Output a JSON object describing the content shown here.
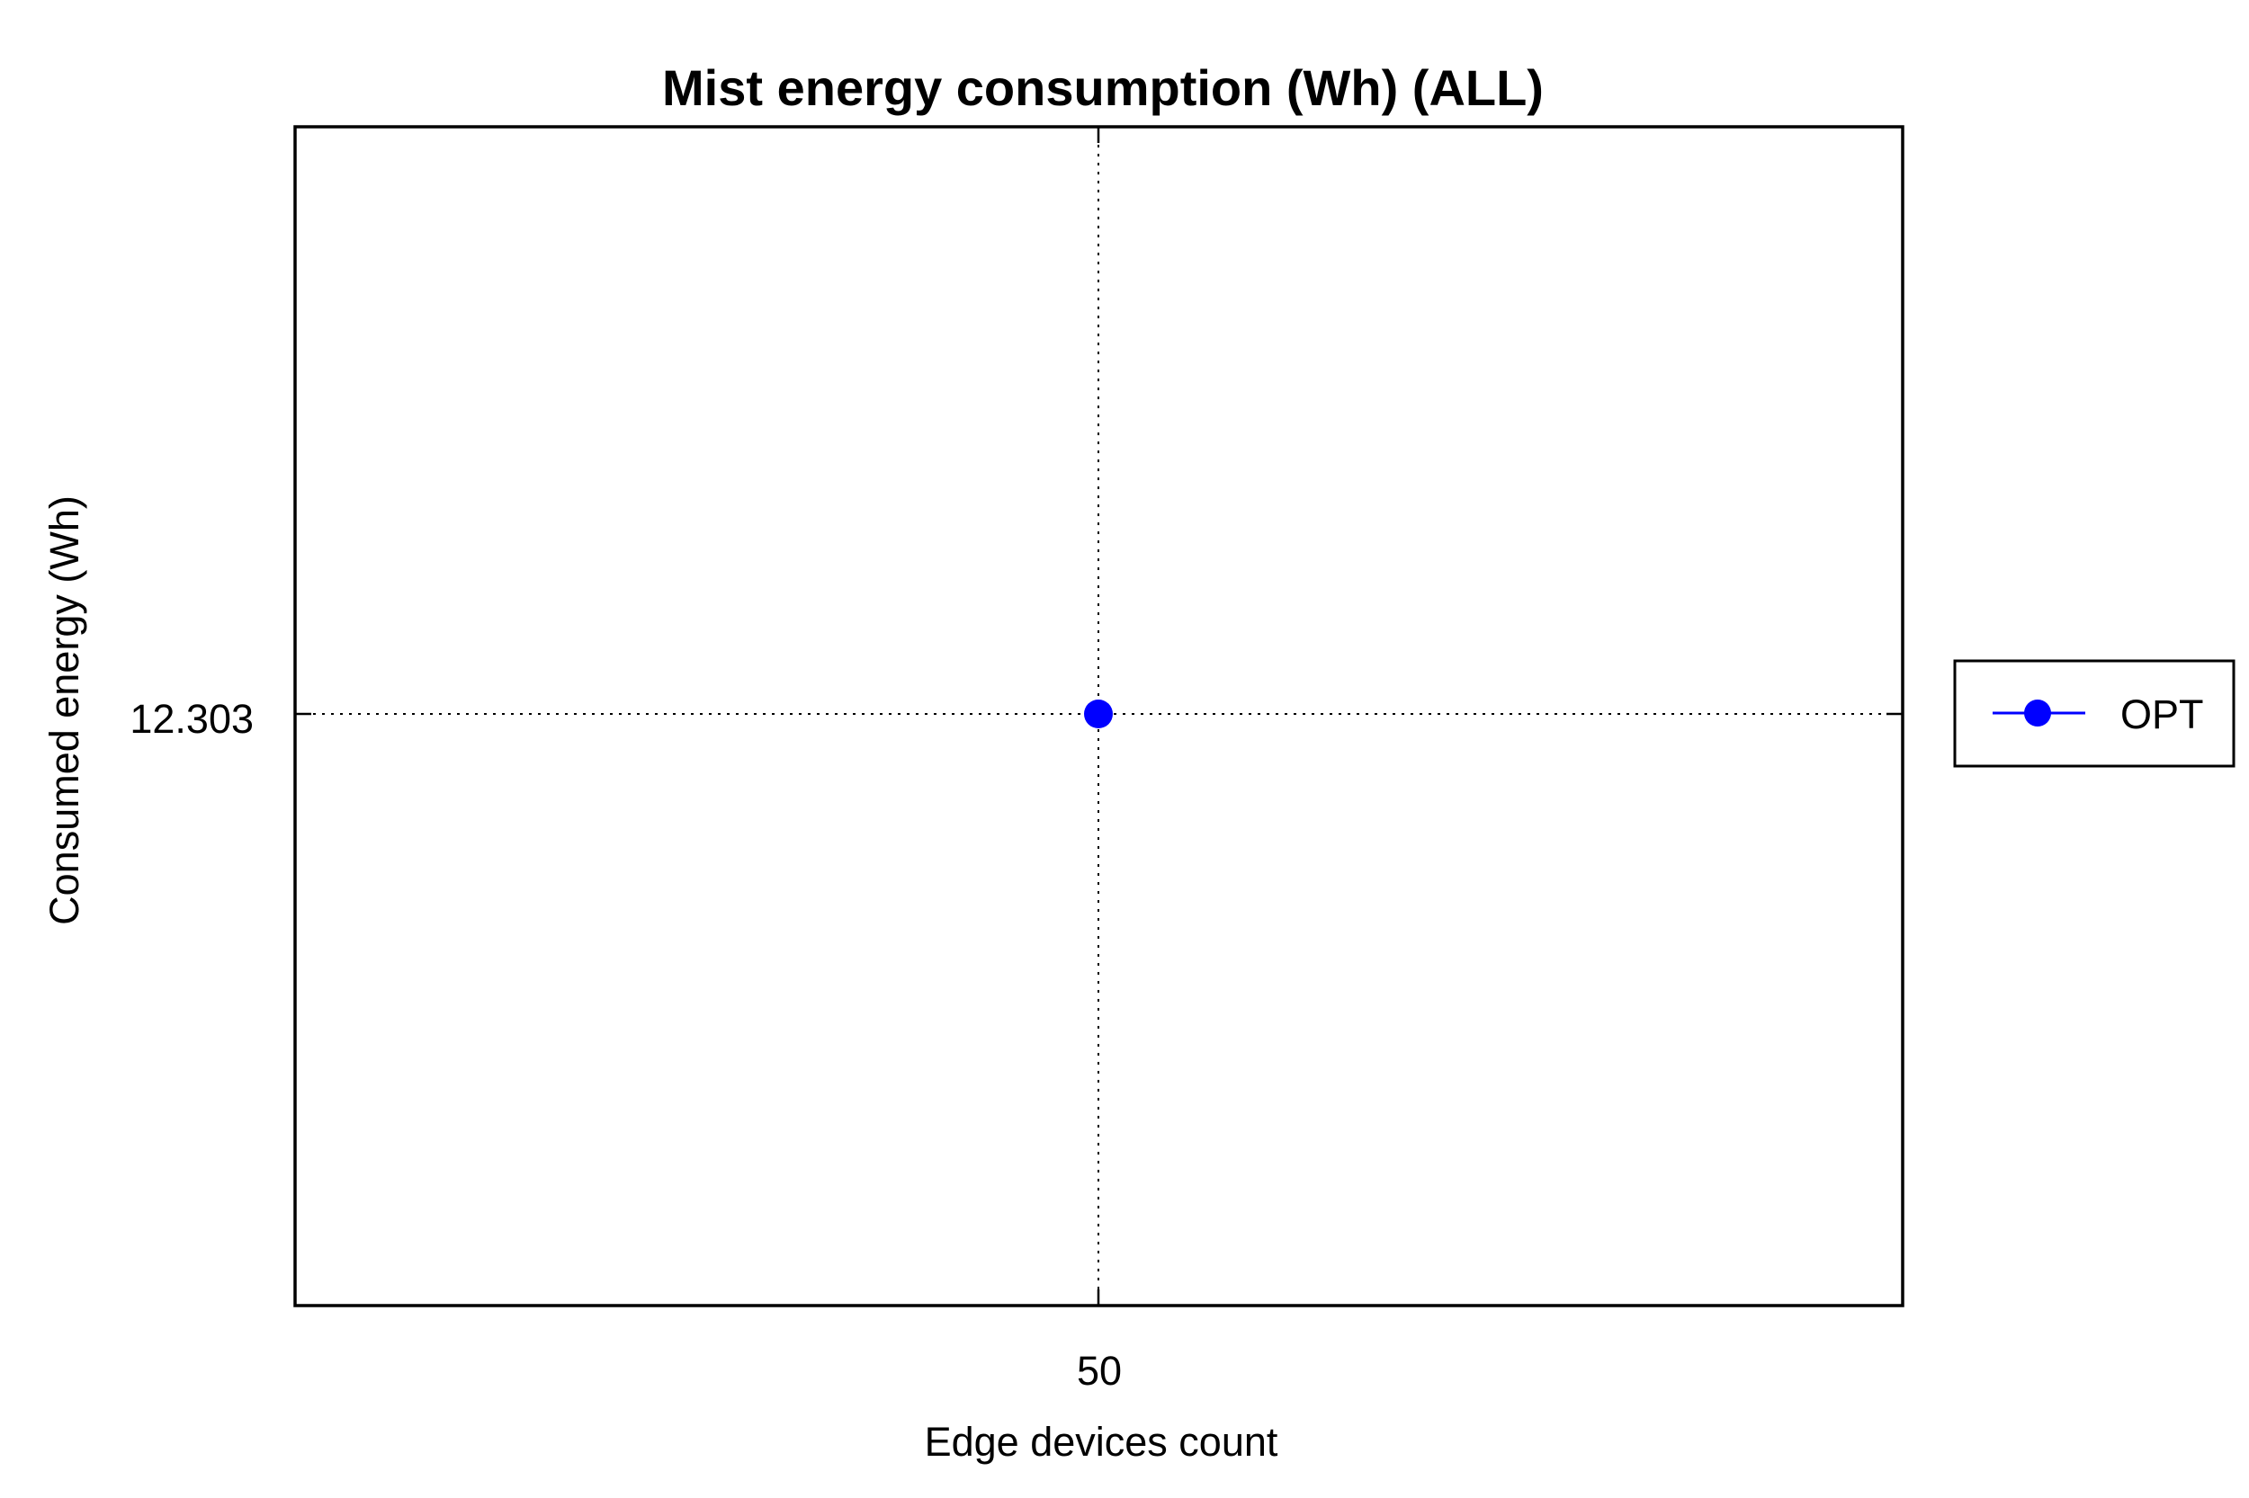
{
  "chart_data": {
    "type": "line",
    "title": "Mist energy consumption (Wh) (ALL)",
    "xlabel": "Edge devices count",
    "ylabel": "Consumed energy (Wh)",
    "x": [
      50
    ],
    "x_tick_labels": [
      "50"
    ],
    "y_tick_labels": [
      "12.303"
    ],
    "y_ticks": [
      12.303
    ],
    "grid": true,
    "legend_position": "right",
    "series": [
      {
        "name": "OPT",
        "color": "#0000ff",
        "marker": "circle",
        "x": [
          50
        ],
        "y": [
          12.303
        ]
      }
    ]
  }
}
